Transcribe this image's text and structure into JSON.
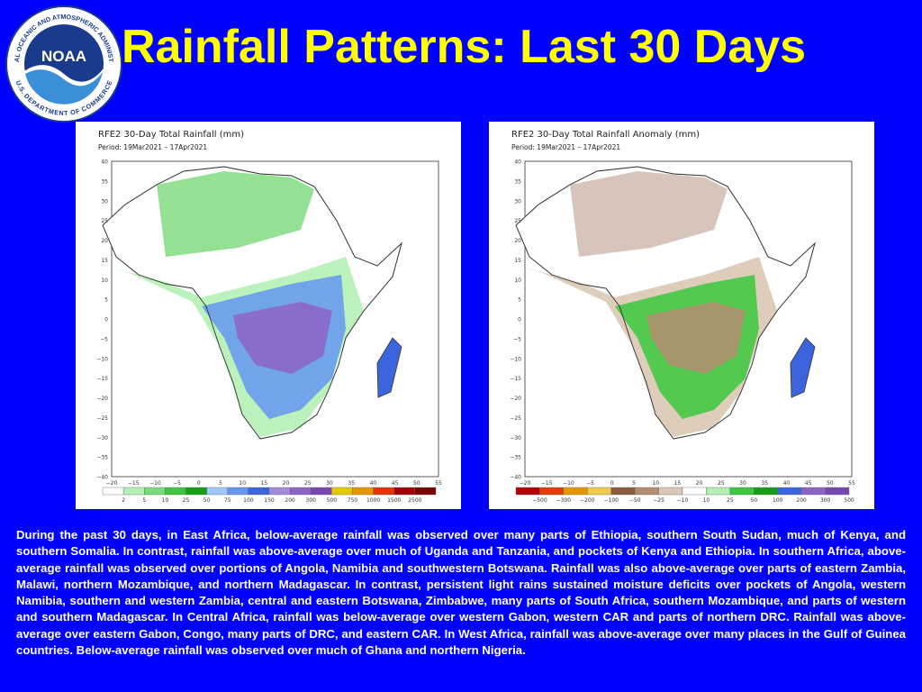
{
  "slide": {
    "title": "Rainfall Patterns: Last 30 Days",
    "background_color": "#0000ff",
    "title_color": "#ffff00"
  },
  "logo": {
    "icon": "noaa-logo-icon",
    "center_text": "NOAA",
    "ring_text_top": "NATIONAL OCEANIC AND ATMOSPHERIC ADMINISTRATION",
    "ring_text_bottom": "U.S. DEPARTMENT OF COMMERCE"
  },
  "maps": [
    {
      "title": "RFE2 30-Day Total Rainfall (mm)",
      "period": "Period: 19Mar2021 – 17Apr2021",
      "y_ticks": [
        "40",
        "35",
        "30",
        "25",
        "20",
        "15",
        "10",
        "5",
        "0",
        "−5",
        "−10",
        "−15",
        "−20",
        "−25",
        "−30",
        "−35",
        "−40"
      ],
      "x_ticks": [
        "−20",
        "−15",
        "−10",
        "−5",
        "0",
        "5",
        "10",
        "15",
        "20",
        "25",
        "30",
        "35",
        "40",
        "45",
        "50",
        "55"
      ],
      "legend_labels": [
        "2",
        "5",
        "10",
        "25",
        "50",
        "75",
        "100",
        "150",
        "200",
        "300",
        "500",
        "750",
        "1000",
        "1500",
        "2500"
      ],
      "legend_colors": [
        "#ffffff",
        "#b4f0b4",
        "#78dc78",
        "#3cc83c",
        "#14a014",
        "#a0c8ff",
        "#6496f0",
        "#3c64dc",
        "#a08cdc",
        "#8c64c8",
        "#7846b4",
        "#e6c800",
        "#e69600",
        "#e63200",
        "#a00000",
        "#780000"
      ]
    },
    {
      "title": "RFE2 30-Day Total Rainfall Anomaly (mm)",
      "period": "Period: 19Mar2021 – 17Apr2021",
      "y_ticks": [
        "40",
        "35",
        "30",
        "25",
        "20",
        "15",
        "10",
        "5",
        "0",
        "−5",
        "−10",
        "−15",
        "−20",
        "−25",
        "−30",
        "−35",
        "−40"
      ],
      "x_ticks": [
        "−20",
        "−15",
        "−10",
        "−5",
        "0",
        "5",
        "10",
        "15",
        "20",
        "25",
        "30",
        "35",
        "40",
        "45",
        "50",
        "55"
      ],
      "legend_labels": [
        "−500",
        "−300",
        "−200",
        "−100",
        "−50",
        "−25",
        "−10",
        "10",
        "25",
        "50",
        "100",
        "200",
        "300",
        "500"
      ],
      "legend_colors": [
        "#b40000",
        "#e63c00",
        "#e69600",
        "#f0c850",
        "#8c5a3c",
        "#b48c6e",
        "#dcc8b4",
        "#ffffff",
        "#b4f0b4",
        "#3cc83c",
        "#14a014",
        "#3c64dc",
        "#8c64c8",
        "#7846b4"
      ]
    }
  ],
  "description": "During the past 30 days, in East Africa, below-average rainfall was observed over many parts of Ethiopia, southern South Sudan, much of Kenya, and southern Somalia. In contrast, rainfall was above-average over much of Uganda and Tanzania, and pockets of Kenya and Ethiopia. In southern Africa, above-average rainfall was observed over portions of Angola, Namibia and southwestern Botswana. Rainfall was also above-average over parts of eastern Zambia, Malawi, northern Mozambique, and northern Madagascar. In contrast, persistent light rains sustained moisture deficits over pockets of Angola, western Namibia, southern and western Zambia, central and eastern Botswana, Zimbabwe, many parts of South Africa, southern Mozambique, and parts of western and southern Madagascar. In Central Africa, rainfall was below-average over western Gabon, western CAR and parts of northern DRC. Rainfall was above-average over eastern Gabon, Congo, many parts of DRC, and eastern CAR. In West Africa, rainfall was above-average over many places in the Gulf of Guinea countries. Below-average rainfall was observed over much of Ghana and northern Nigeria."
}
